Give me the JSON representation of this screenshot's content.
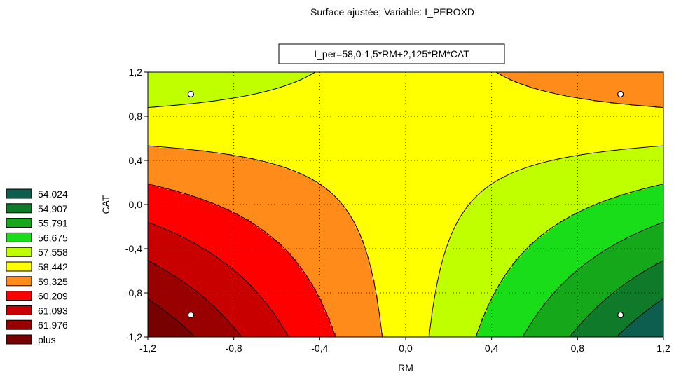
{
  "chart_data": {
    "type": "contour",
    "title": "Surface ajustée; Variable: I_PEROXD",
    "equation": "I_per=58,0-1,5*RM+2,125*RM*CAT",
    "xlabel": "RM",
    "ylabel": "CAT",
    "xlim": [
      -1.2,
      1.2
    ],
    "ylim": [
      -1.2,
      1.2
    ],
    "xticks": [
      -1.2,
      -0.8,
      -0.4,
      0.0,
      0.4,
      0.8,
      1.2
    ],
    "yticks": [
      -1.2,
      -0.8,
      -0.4,
      0.0,
      0.4,
      0.8,
      1.2
    ],
    "xtick_labels": [
      "-1,2",
      "-0,8",
      "-0,4",
      "0,0",
      "0,4",
      "0,8",
      "1,2"
    ],
    "ytick_labels": [
      "-1,2",
      "-0,8",
      "-0,4",
      "0,0",
      "0,4",
      "0,8",
      "1,2"
    ],
    "model": {
      "intercept": 58.0,
      "coef_RM": -1.5,
      "coef_RM_CAT": 2.125
    },
    "levels": [
      54.024,
      54.907,
      55.791,
      56.675,
      57.558,
      58.442,
      59.325,
      60.209,
      61.093,
      61.976
    ],
    "legend": [
      {
        "label": "54,024",
        "color": "#0d5e4f"
      },
      {
        "label": "54,907",
        "color": "#0e7a2a"
      },
      {
        "label": "55,791",
        "color": "#15a81a"
      },
      {
        "label": "56,675",
        "color": "#19dd19"
      },
      {
        "label": "57,558",
        "color": "#bfff00"
      },
      {
        "label": "58,442",
        "color": "#ffff00"
      },
      {
        "label": "59,325",
        "color": "#ff8c1a"
      },
      {
        "label": "60,209",
        "color": "#ff0000"
      },
      {
        "label": "61,093",
        "color": "#c80000"
      },
      {
        "label": "61,976",
        "color": "#990000"
      },
      {
        "label": "plus",
        "color": "#770000"
      }
    ],
    "design_points": [
      {
        "x": -1,
        "y": 1
      },
      {
        "x": 1,
        "y": 1
      },
      {
        "x": -1,
        "y": -1
      },
      {
        "x": 1,
        "y": -1
      }
    ],
    "grid": true,
    "legend_position": "left"
  }
}
